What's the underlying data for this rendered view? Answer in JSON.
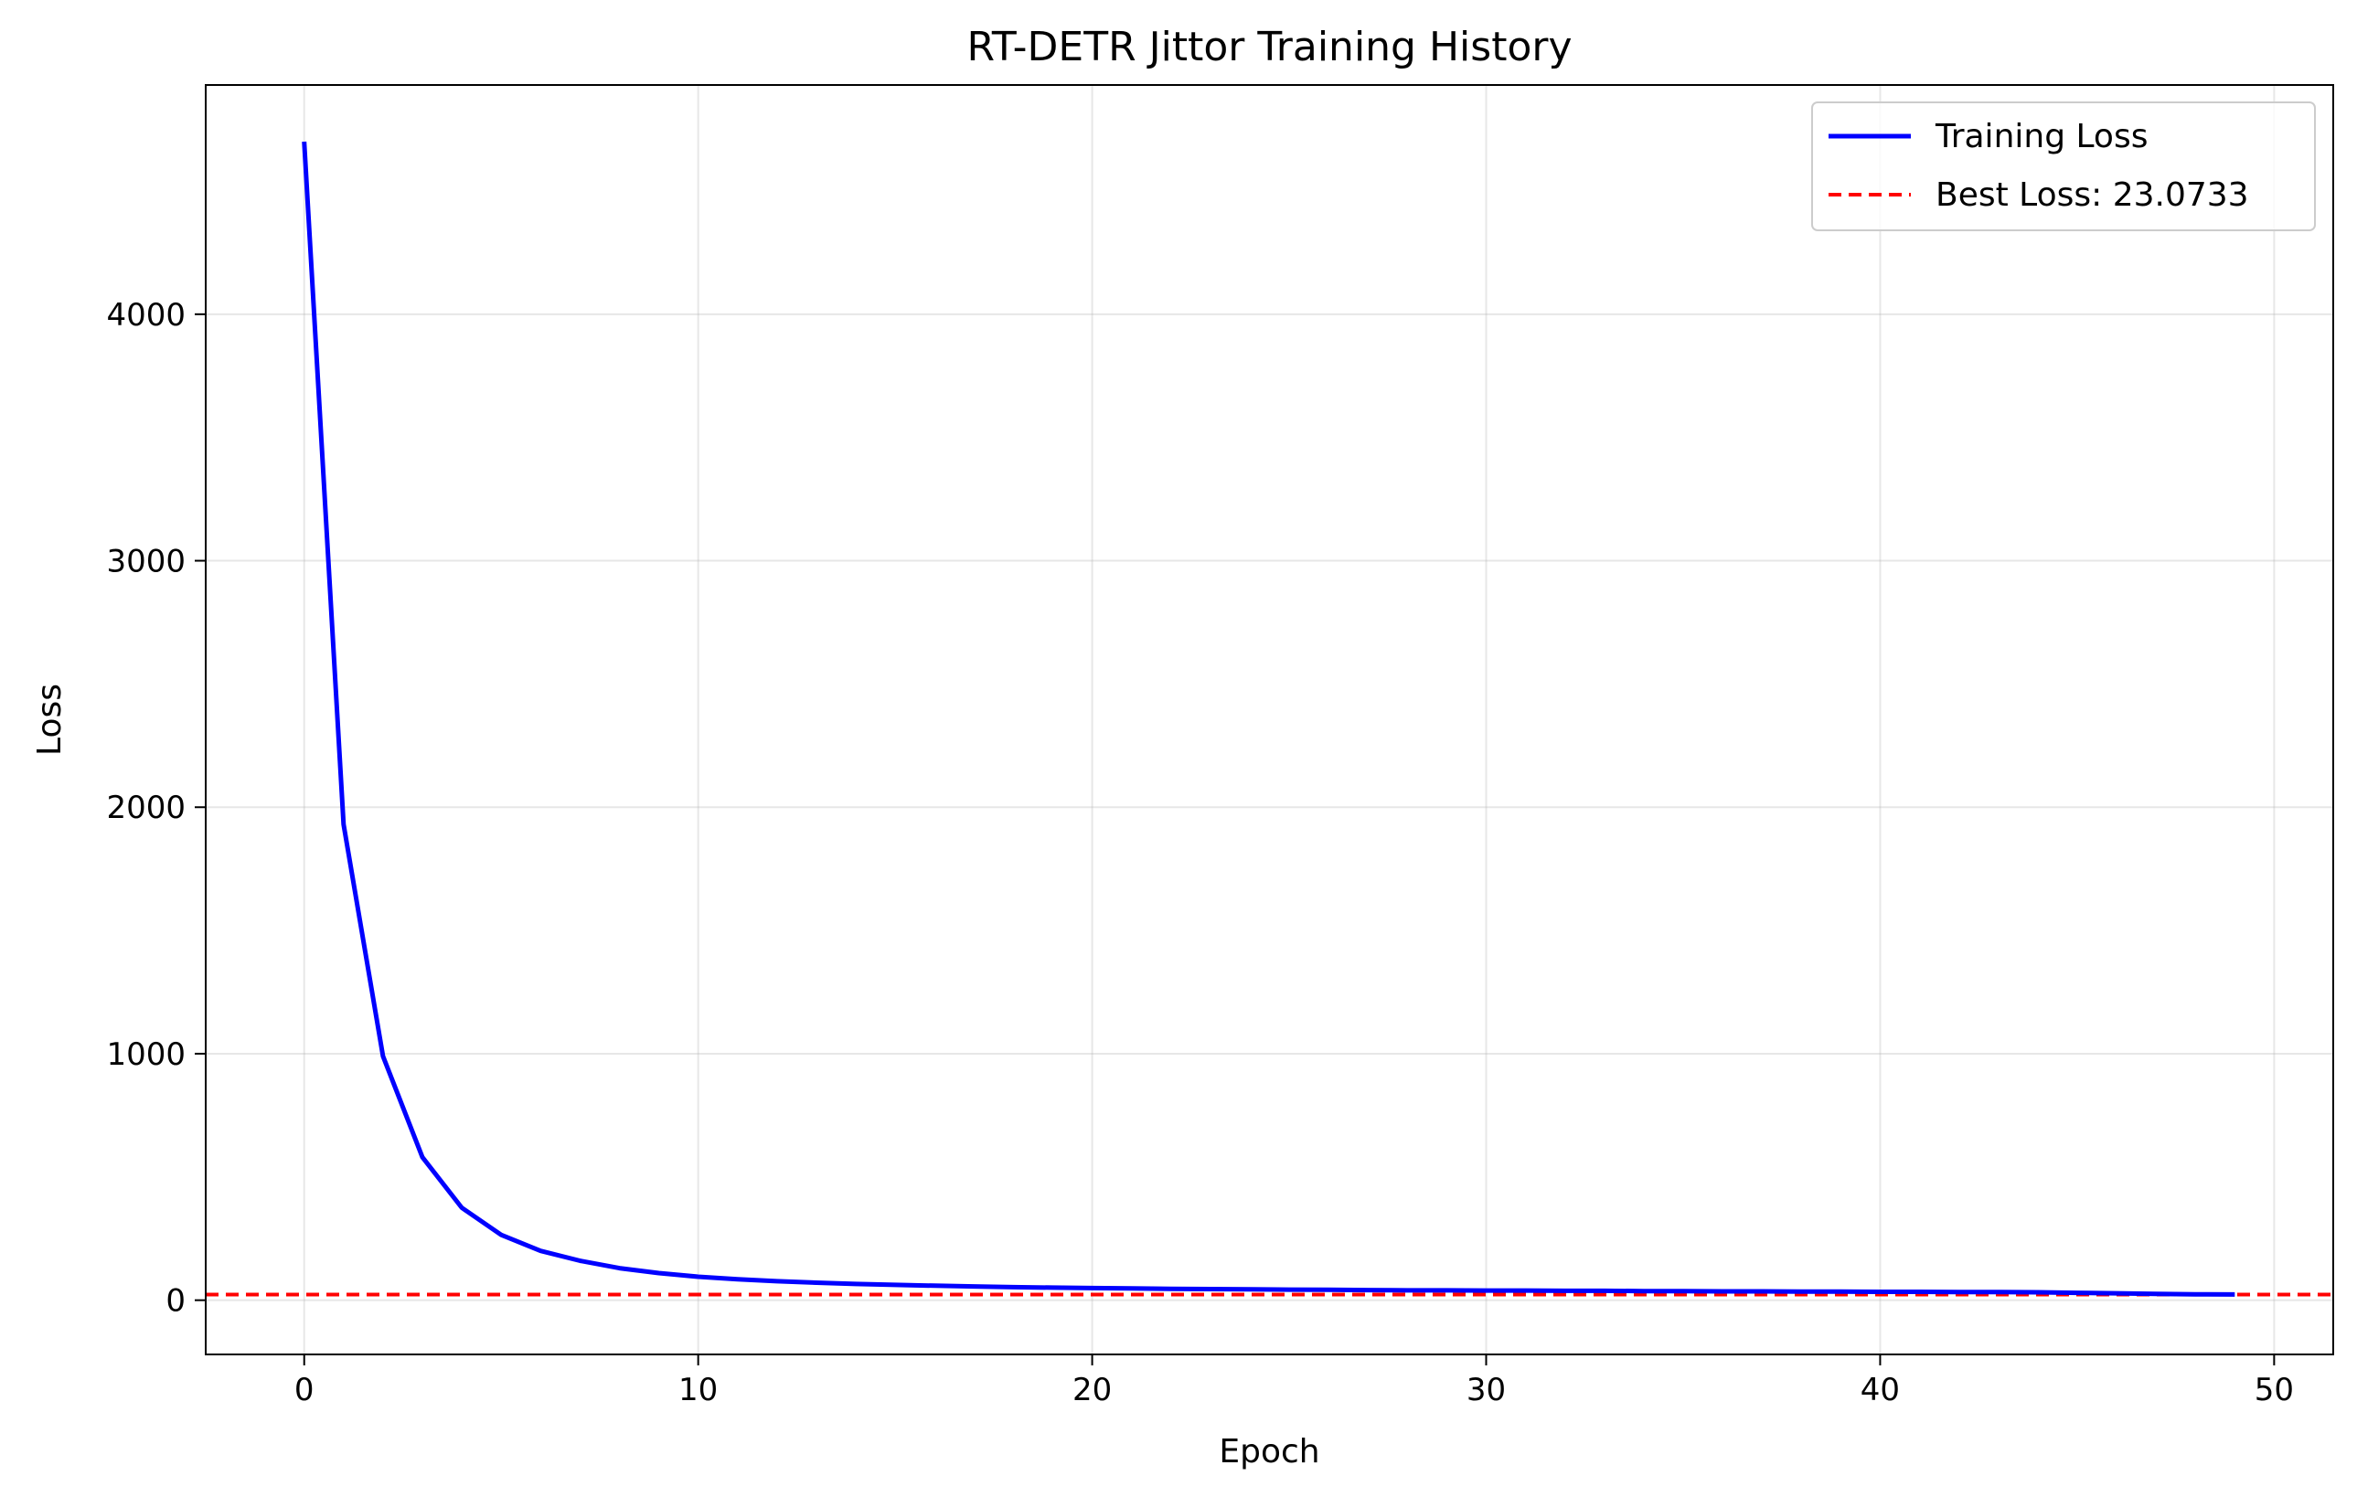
{
  "chart_data": {
    "type": "line",
    "title": "RT-DETR Jittor Training History",
    "xlabel": "Epoch",
    "ylabel": "Loss",
    "xlim": [
      -2.5,
      51.5
    ],
    "ylim": [
      -220,
      4930
    ],
    "xticks": [
      0,
      10,
      20,
      30,
      40,
      50
    ],
    "yticks": [
      0,
      1000,
      2000,
      3000,
      4000
    ],
    "grid": true,
    "legend_position": "top-right",
    "series": [
      {
        "name": "Training Loss",
        "color": "#0000ff",
        "style": "solid",
        "x": [
          0,
          1,
          2,
          3,
          4,
          5,
          6,
          7,
          8,
          9,
          10,
          11,
          12,
          13,
          14,
          15,
          16,
          17,
          18,
          19,
          20,
          21,
          22,
          23,
          24,
          25,
          26,
          27,
          28,
          29,
          30,
          31,
          32,
          33,
          34,
          35,
          36,
          37,
          38,
          39,
          40,
          41,
          42,
          43,
          44,
          45,
          46,
          47,
          48,
          49
        ],
        "y": [
          4700,
          1930,
          990,
          580,
          375,
          265,
          200,
          160,
          130,
          110,
          95,
          85,
          77,
          71,
          66,
          62,
          59,
          56,
          53,
          51,
          49,
          48,
          46,
          45,
          44,
          43,
          42,
          41,
          40,
          40,
          39,
          39,
          38,
          38,
          37,
          37,
          36,
          36,
          35,
          35,
          34,
          34,
          33,
          33,
          32,
          30,
          28,
          26,
          24,
          23.07
        ]
      },
      {
        "name": "Best Loss: 23.0733",
        "color": "#ff0000",
        "style": "dashed",
        "y_constant": 23.0733
      }
    ]
  }
}
